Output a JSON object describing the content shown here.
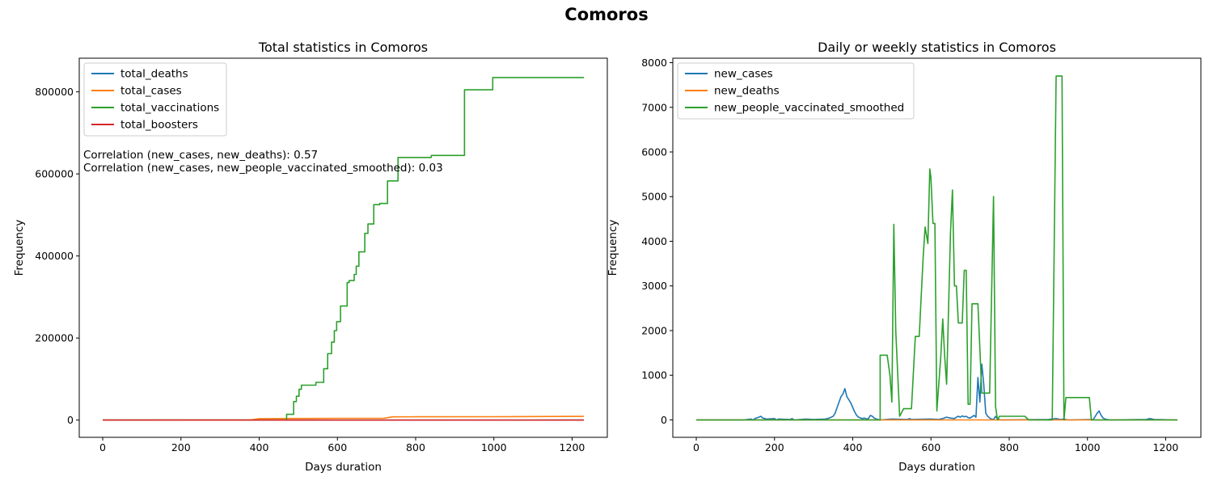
{
  "figure": {
    "title": "Comoros"
  },
  "chart_data": [
    {
      "type": "line",
      "title": "Total statistics in Comoros",
      "xlabel": "Days duration",
      "ylabel": "Frequency",
      "xlim": [
        -60,
        1290
      ],
      "ylim": [
        -42000,
        882000
      ],
      "xticks": [
        0,
        200,
        400,
        600,
        800,
        1000,
        1200
      ],
      "yticks": [
        0,
        200000,
        400000,
        600000,
        800000
      ],
      "legend_position": "top-left",
      "grid": false,
      "annotations": [
        "Correlation (new_cases, new_deaths): 0.57",
        "Correlation (new_cases, new_people_vaccinated_smoothed): 0.03"
      ],
      "series": [
        {
          "name": "total_deaths",
          "color": "#1f77b4",
          "x": [
            0,
            1230
          ],
          "y": [
            0,
            160
          ]
        },
        {
          "name": "total_cases",
          "color": "#ff7f0e",
          "x": [
            0,
            380,
            400,
            500,
            600,
            720,
            740,
            800,
            1000,
            1100,
            1230
          ],
          "y": [
            0,
            600,
            3500,
            4000,
            4200,
            4400,
            7800,
            8000,
            8200,
            8600,
            9000
          ]
        },
        {
          "name": "total_vaccinations",
          "color": "#2ca02c",
          "x": [
            0,
            470,
            470,
            488,
            488,
            495,
            495,
            502,
            502,
            508,
            508,
            545,
            545,
            565,
            565,
            575,
            575,
            585,
            585,
            592,
            592,
            598,
            598,
            608,
            608,
            625,
            625,
            630,
            630,
            643,
            643,
            648,
            648,
            655,
            655,
            670,
            670,
            678,
            678,
            693,
            693,
            708,
            708,
            728,
            728,
            755,
            755,
            840,
            840,
            925,
            925,
            997,
            997,
            1230
          ],
          "y": [
            0,
            0,
            14000,
            14000,
            45000,
            45000,
            58000,
            58000,
            75000,
            75000,
            85000,
            85000,
            92000,
            92000,
            125000,
            125000,
            162000,
            162000,
            190000,
            190000,
            218000,
            218000,
            240000,
            240000,
            278000,
            278000,
            335000,
            335000,
            340000,
            340000,
            355000,
            355000,
            375000,
            375000,
            410000,
            410000,
            455000,
            455000,
            478000,
            478000,
            525000,
            525000,
            528000,
            528000,
            583000,
            583000,
            640000,
            640000,
            645000,
            645000,
            805000,
            805000,
            835000,
            835000
          ]
        },
        {
          "name": "total_boosters",
          "color": "#d62728",
          "x": [
            0,
            1230
          ],
          "y": [
            0,
            0
          ]
        }
      ]
    },
    {
      "type": "line",
      "title": "Daily or weekly statistics in Comoros",
      "xlabel": "Days duration",
      "ylabel": "Frequency",
      "xlim": [
        -60,
        1290
      ],
      "ylim": [
        -390,
        8100
      ],
      "xticks": [
        0,
        200,
        400,
        600,
        800,
        1000,
        1200
      ],
      "yticks": [
        0,
        1000,
        2000,
        3000,
        4000,
        5000,
        6000,
        7000,
        8000
      ],
      "legend_position": "top-left",
      "grid": false,
      "series": [
        {
          "name": "new_cases",
          "color": "#1f77b4",
          "x": [
            0,
            120,
            140,
            145,
            150,
            160,
            165,
            170,
            180,
            200,
            205,
            210,
            240,
            245,
            250,
            280,
            300,
            330,
            340,
            350,
            355,
            360,
            365,
            370,
            375,
            380,
            385,
            390,
            395,
            400,
            405,
            410,
            415,
            420,
            425,
            430,
            435,
            440,
            445,
            450,
            455,
            460,
            465,
            470,
            500,
            540,
            545,
            550,
            600,
            620,
            630,
            640,
            650,
            660,
            665,
            670,
            675,
            680,
            685,
            690,
            695,
            700,
            710,
            715,
            720,
            725,
            730,
            735,
            740,
            745,
            750,
            755,
            760,
            765,
            770,
            780,
            900,
            920,
            930,
            940,
            950,
            1015,
            1020,
            1025,
            1030,
            1035,
            1040,
            1045,
            1050,
            1060,
            1150,
            1160,
            1170,
            1230
          ],
          "y": [
            0,
            0,
            20,
            0,
            30,
            60,
            80,
            40,
            20,
            30,
            0,
            20,
            10,
            30,
            0,
            20,
            10,
            20,
            40,
            80,
            150,
            280,
            400,
            520,
            580,
            700,
            520,
            450,
            380,
            280,
            180,
            100,
            60,
            40,
            30,
            40,
            20,
            30,
            100,
            80,
            40,
            20,
            10,
            0,
            20,
            10,
            30,
            10,
            20,
            10,
            30,
            60,
            40,
            30,
            60,
            80,
            60,
            90,
            70,
            80,
            50,
            40,
            100,
            60,
            950,
            400,
            1250,
            800,
            150,
            80,
            40,
            20,
            10,
            80,
            20,
            0,
            10,
            30,
            10,
            20,
            0,
            10,
            80,
            150,
            200,
            100,
            40,
            20,
            10,
            0,
            10,
            30,
            10,
            0
          ]
        },
        {
          "name": "new_deaths",
          "color": "#ff7f0e",
          "x": [
            0,
            1230
          ],
          "y": [
            0,
            0
          ]
        },
        {
          "name": "new_people_vaccinated_smoothed",
          "color": "#2ca02c",
          "x": [
            0,
            470,
            470,
            488,
            495,
            500,
            505,
            510,
            520,
            530,
            550,
            560,
            570,
            580,
            585,
            592,
            597,
            600,
            605,
            610,
            615,
            625,
            630,
            635,
            640,
            645,
            650,
            655,
            660,
            665,
            670,
            680,
            685,
            690,
            695,
            700,
            705,
            710,
            715,
            720,
            730,
            735,
            750,
            760,
            765,
            770,
            775,
            780,
            840,
            850,
            910,
            920,
            935,
            940,
            945,
            1000,
            1005,
            1010,
            1230
          ],
          "y": [
            0,
            0,
            1450,
            1450,
            1000,
            400,
            4380,
            2000,
            80,
            250,
            250,
            1870,
            1870,
            3650,
            4320,
            3950,
            5620,
            5420,
            4400,
            4400,
            200,
            1400,
            2260,
            1420,
            800,
            2500,
            4200,
            5150,
            3000,
            3000,
            2170,
            2170,
            3350,
            3350,
            350,
            350,
            2600,
            2600,
            2600,
            2600,
            600,
            600,
            600,
            5000,
            300,
            0,
            80,
            80,
            80,
            0,
            0,
            7700,
            7700,
            0,
            500,
            500,
            500,
            0,
            0
          ]
        }
      ]
    }
  ]
}
